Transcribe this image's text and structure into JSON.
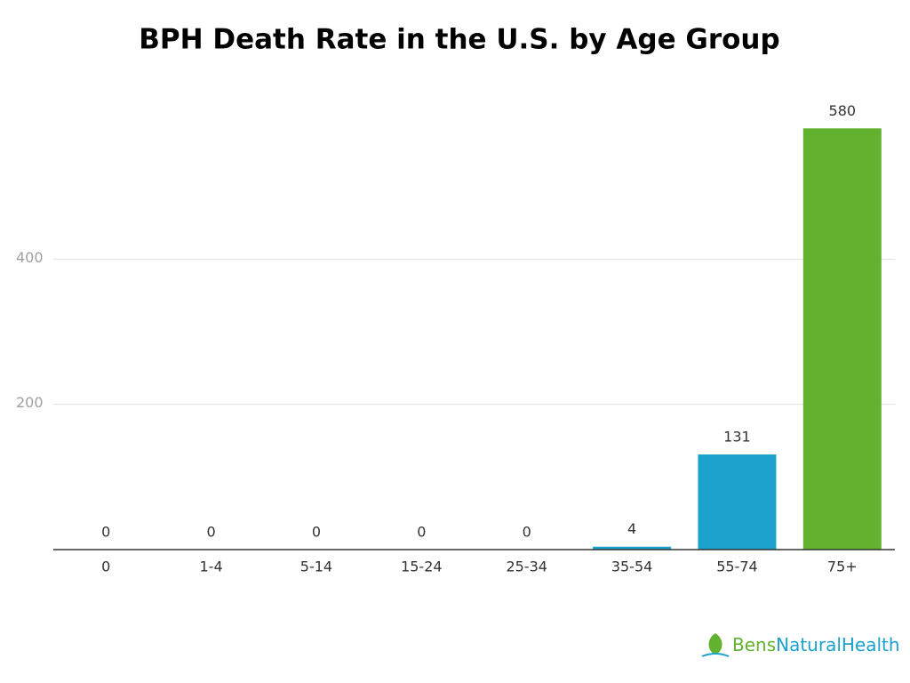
{
  "chart_data": {
    "type": "bar",
    "title": "BPH Death Rate in the U.S. by Age Group",
    "categories": [
      "0",
      "1-4",
      "5-14",
      "15-24",
      "25-34",
      "35-54",
      "55-74",
      "75+"
    ],
    "values": [
      0,
      0,
      0,
      0,
      0,
      4,
      131,
      580
    ],
    "colors": [
      "#1ba1cc",
      "#1ba1cc",
      "#1ba1cc",
      "#1ba1cc",
      "#1ba1cc",
      "#1ba1cc",
      "#1ba1cc",
      "#62b22f"
    ],
    "ylim": [
      0,
      600
    ],
    "yticks": [
      200,
      400
    ],
    "grid": true,
    "logo": {
      "first": "Bens",
      "second": "NaturalHealth"
    }
  }
}
